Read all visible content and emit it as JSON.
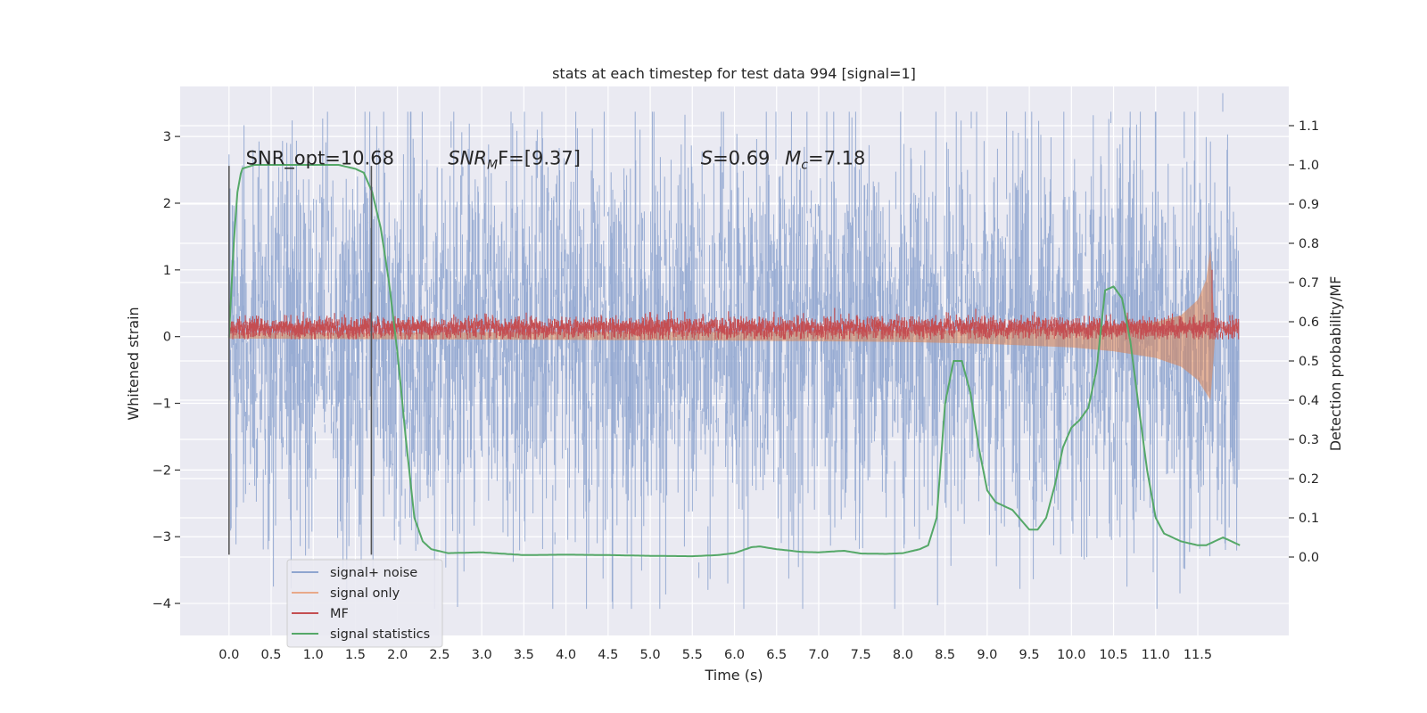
{
  "chart_data": {
    "type": "line",
    "title": "stats at each timestep for test data 994 [signal=1]",
    "xlabel": "Time (s)",
    "ylabel": "Whitened strain",
    "y2label": "Detection probability/MF",
    "xlim": [
      -0.58,
      12.58
    ],
    "ylim": [
      -4.48,
      3.75
    ],
    "y2lim": [
      -0.2,
      1.2
    ],
    "xticks": [
      0.0,
      0.5,
      1.0,
      1.5,
      2.0,
      2.5,
      3.0,
      3.5,
      4.0,
      4.5,
      5.0,
      5.5,
      6.0,
      6.5,
      7.0,
      7.5,
      8.0,
      8.5,
      9.0,
      9.5,
      10.0,
      10.5,
      11.0,
      11.5
    ],
    "xtick_labels": [
      "0.0",
      "0.5",
      "1.0",
      "1.5",
      "2.0",
      "2.5",
      "3.0",
      "3.5",
      "4.0",
      "4.5",
      "5.0",
      "5.5",
      "6.0",
      "6.5",
      "7.0",
      "7.5",
      "8.0",
      "8.5",
      "9.0",
      "9.5",
      "10.0",
      "10.5",
      "11.0",
      "11.5"
    ],
    "yticks": [
      3,
      2,
      1,
      0,
      -1,
      -2,
      -3,
      -4
    ],
    "ytick_labels": [
      "3",
      "2",
      "1",
      "0",
      "−1",
      "−2",
      "−3",
      "−4"
    ],
    "y2ticks": [
      1.1,
      1.0,
      0.9,
      0.8,
      0.7,
      0.6,
      0.5,
      0.4,
      0.3,
      0.2,
      0.1,
      0.0
    ],
    "y2tick_labels": [
      "1.1",
      "1.0",
      "0.9",
      "0.8",
      "0.7",
      "0.6",
      "0.5",
      "0.4",
      "0.3",
      "0.2",
      "0.1",
      "0.0"
    ],
    "grid": true,
    "legend_position": "lower-left",
    "colors": {
      "background": "#eaeaf2",
      "grid": "#ffffff",
      "signal_noise": "#8fa5cf",
      "signal_only": "#dd8452",
      "mf": "#c44e52",
      "stats": "#55a868",
      "vlines": "#555555"
    },
    "annotations": [
      {
        "text": "SNR_opt=10.68",
        "x": 0.2,
        "y": 2.58
      },
      {
        "text": "SNR",
        "sub": "M",
        "tail": "F=[9.37]",
        "x": 2.6,
        "y": 2.58
      },
      {
        "text": "S",
        "tail": "=0.69",
        "x": 5.6,
        "y": 2.58
      },
      {
        "text": "M",
        "sub": "c",
        "tail": "=7.18",
        "x": 6.6,
        "y": 2.58
      }
    ],
    "vertical_lines": [
      {
        "x": 0.0,
        "y_from": -3.27,
        "y_to": 2.56
      },
      {
        "x": 1.69,
        "y_from": -3.27,
        "y_to": 2.56
      }
    ],
    "series": [
      {
        "name": "signal+ noise",
        "axis": "left",
        "style": "noise-band",
        "x_range": [
          0.0,
          11.99
        ],
        "sigma": 0.78,
        "ymin": -4.08,
        "ymax": 3.37
      },
      {
        "name": "signal only",
        "axis": "left",
        "style": "chirp-envelope",
        "x": [
          0.0,
          2.0,
          4.0,
          6.0,
          7.0,
          8.0,
          9.0,
          10.0,
          10.5,
          11.0,
          11.3,
          11.5,
          11.6,
          11.65,
          11.7
        ],
        "upper": [
          0.06,
          0.06,
          0.07,
          0.07,
          0.08,
          0.09,
          0.1,
          0.13,
          0.16,
          0.22,
          0.32,
          0.55,
          0.85,
          1.32,
          0.1
        ],
        "lower": [
          -0.03,
          -0.04,
          -0.05,
          -0.06,
          -0.07,
          -0.08,
          -0.11,
          -0.16,
          -0.22,
          -0.32,
          -0.45,
          -0.65,
          -0.85,
          -0.95,
          -0.1
        ]
      },
      {
        "name": "MF",
        "axis": "left",
        "style": "noise-band",
        "x_range": [
          0.0,
          11.99
        ],
        "center": 0.13,
        "sigma": 0.07,
        "ymin": -0.04,
        "ymax": 0.43,
        "spike": {
          "x": 11.67,
          "y": 1.0
        }
      },
      {
        "name": "signal statistics",
        "axis": "right",
        "style": "line",
        "x": [
          0.0,
          0.05,
          0.1,
          0.15,
          0.3,
          0.5,
          1.0,
          1.3,
          1.5,
          1.6,
          1.7,
          1.8,
          1.9,
          2.0,
          2.1,
          2.2,
          2.3,
          2.4,
          2.6,
          3.0,
          3.5,
          4.0,
          4.5,
          5.0,
          5.5,
          5.8,
          6.0,
          6.2,
          6.3,
          6.5,
          6.8,
          7.0,
          7.3,
          7.5,
          7.8,
          8.0,
          8.2,
          8.3,
          8.4,
          8.5,
          8.6,
          8.7,
          8.8,
          8.9,
          9.0,
          9.1,
          9.3,
          9.5,
          9.6,
          9.7,
          9.8,
          9.9,
          10.0,
          10.1,
          10.2,
          10.3,
          10.4,
          10.5,
          10.6,
          10.7,
          10.8,
          10.9,
          11.0,
          11.1,
          11.3,
          11.5,
          11.6,
          11.7,
          11.8,
          11.9,
          12.0
        ],
        "y": [
          0.56,
          0.78,
          0.93,
          0.99,
          1.0,
          1.0,
          1.0,
          1.0,
          0.99,
          0.98,
          0.93,
          0.84,
          0.7,
          0.52,
          0.3,
          0.1,
          0.04,
          0.02,
          0.01,
          0.012,
          0.005,
          0.006,
          0.005,
          0.003,
          0.002,
          0.005,
          0.01,
          0.025,
          0.027,
          0.02,
          0.013,
          0.012,
          0.016,
          0.009,
          0.008,
          0.01,
          0.02,
          0.03,
          0.1,
          0.39,
          0.5,
          0.5,
          0.42,
          0.28,
          0.17,
          0.14,
          0.12,
          0.07,
          0.07,
          0.1,
          0.18,
          0.28,
          0.33,
          0.35,
          0.38,
          0.48,
          0.68,
          0.69,
          0.66,
          0.55,
          0.38,
          0.22,
          0.1,
          0.06,
          0.04,
          0.03,
          0.03,
          0.04,
          0.05,
          0.04,
          0.03
        ]
      }
    ],
    "legend": [
      {
        "label": "signal+ noise",
        "color": "#8fa5cf"
      },
      {
        "label": "signal only",
        "color": "#e8a98a"
      },
      {
        "label": "MF",
        "color": "#c44e52"
      },
      {
        "label": "signal statistics",
        "color": "#55a868"
      }
    ]
  }
}
